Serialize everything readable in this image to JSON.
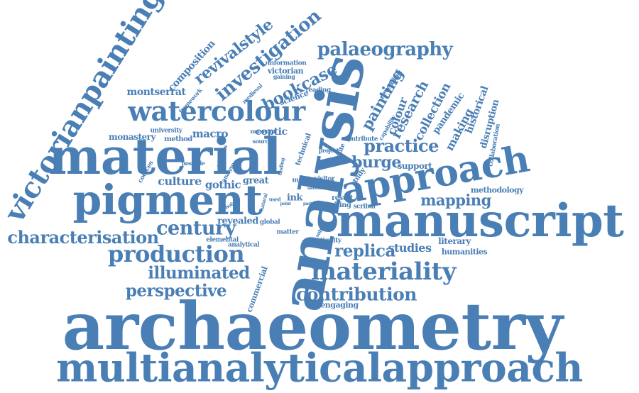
{
  "color": "#4a7fb5",
  "words": [
    {
      "text": "archaeometry"
    },
    {
      "text": "multianalyticalapproach"
    },
    {
      "text": "manuscript"
    },
    {
      "text": "material"
    },
    {
      "text": "analysis"
    },
    {
      "text": "pigment"
    },
    {
      "text": "approach"
    },
    {
      "text": "victorianpainting"
    },
    {
      "text": "watercolour"
    },
    {
      "text": "materiality"
    },
    {
      "text": "production"
    },
    {
      "text": "century"
    },
    {
      "text": "characterisation"
    },
    {
      "text": "palaeography"
    },
    {
      "text": "contribution"
    },
    {
      "text": "investigation"
    },
    {
      "text": "illuminated"
    },
    {
      "text": "perspective"
    },
    {
      "text": "replica"
    },
    {
      "text": "revivalstyle"
    },
    {
      "text": "bookcase"
    },
    {
      "text": "practice"
    },
    {
      "text": "burge"
    },
    {
      "text": "mapping"
    },
    {
      "text": "painting"
    },
    {
      "text": "research"
    },
    {
      "text": "collection"
    },
    {
      "text": "colour"
    },
    {
      "text": "making"
    },
    {
      "text": "historical"
    },
    {
      "text": "disruption"
    },
    {
      "text": "pandemic"
    },
    {
      "text": "studies"
    },
    {
      "text": "composition"
    },
    {
      "text": "montserrat"
    },
    {
      "text": "macro"
    },
    {
      "text": "culture"
    },
    {
      "text": "gothic"
    },
    {
      "text": "great"
    },
    {
      "text": "coptic"
    },
    {
      "text": "monastery"
    },
    {
      "text": "book"
    },
    {
      "text": "ink"
    },
    {
      "text": "support"
    },
    {
      "text": "methodology"
    },
    {
      "text": "literary"
    },
    {
      "text": "humanities"
    },
    {
      "text": "revealed"
    },
    {
      "text": "technical"
    },
    {
      "text": "victorian"
    },
    {
      "text": "information"
    },
    {
      "text": "gaining"
    },
    {
      "text": "reading"
    },
    {
      "text": "science"
    },
    {
      "text": "framework"
    },
    {
      "text": "medieval"
    },
    {
      "text": "university"
    },
    {
      "text": "method"
    },
    {
      "text": "museum"
    },
    {
      "text": "source"
    },
    {
      "text": "collaboration"
    },
    {
      "text": "capability"
    },
    {
      "text": "revealing"
    },
    {
      "text": "contribute"
    },
    {
      "text": "project"
    },
    {
      "text": "white"
    },
    {
      "text": "visitor"
    },
    {
      "text": "meet"
    },
    {
      "text": "study"
    },
    {
      "text": "result"
    },
    {
      "text": "writing"
    },
    {
      "text": "scribal"
    },
    {
      "text": "analytical"
    },
    {
      "text": "global"
    },
    {
      "text": "matter"
    },
    {
      "text": "antiquity"
    },
    {
      "text": "engaging"
    },
    {
      "text": "elemental"
    },
    {
      "text": "commercial"
    },
    {
      "text": "scholar"
    },
    {
      "text": "natural"
    },
    {
      "text": "possible"
    },
    {
      "text": "codices"
    },
    {
      "text": "papyrus"
    },
    {
      "text": "analyse"
    },
    {
      "text": "finding"
    },
    {
      "text": "subject"
    },
    {
      "text": "ebook"
    },
    {
      "text": "used"
    },
    {
      "text": "point"
    },
    {
      "text": "past"
    },
    {
      "text": "text"
    },
    {
      "text": "fact"
    },
    {
      "text": "leaf"
    }
  ]
}
